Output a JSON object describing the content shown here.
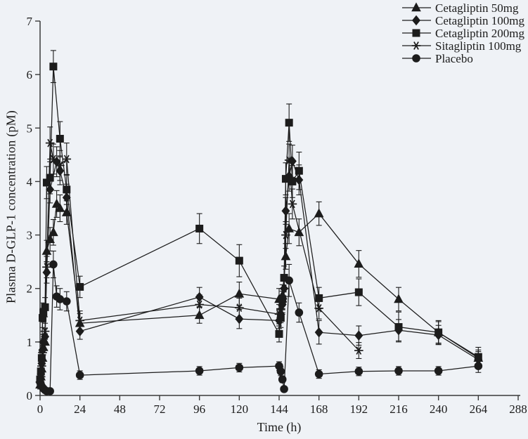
{
  "figure": {
    "background_color": "#eff2f6",
    "ink_color": "#1c1c1c",
    "axis_color": "#3a3a3a"
  },
  "chart_data": {
    "type": "line",
    "title": "",
    "xlabel": "Time (h)",
    "ylabel": "Plasma D-GLP-1 concentration (pM)",
    "xlim": [
      0,
      288
    ],
    "ylim": [
      0,
      7
    ],
    "x_ticks": [
      0,
      24,
      48,
      72,
      96,
      120,
      144,
      168,
      192,
      216,
      240,
      264,
      288
    ],
    "y_ticks": [
      0,
      1,
      2,
      3,
      4,
      5,
      6,
      7
    ],
    "grid": false,
    "error_bars": true,
    "legend_position": "top-right",
    "points_format": [
      "time_h",
      "value_pM",
      "error_pM"
    ],
    "series": [
      {
        "name": "Cetagliptin 50mg",
        "marker": "triangle",
        "points": [
          [
            0,
            0.2,
            0.08
          ],
          [
            0.5,
            0.35,
            0.1
          ],
          [
            1,
            0.5,
            0.12
          ],
          [
            1.5,
            0.7,
            0.12
          ],
          [
            2,
            0.9,
            0.14
          ],
          [
            3,
            1.0,
            0.15
          ],
          [
            4,
            2.7,
            0.2
          ],
          [
            6,
            2.92,
            0.22
          ],
          [
            8,
            3.05,
            0.24
          ],
          [
            10,
            3.58,
            0.25
          ],
          [
            12,
            3.5,
            0.25
          ],
          [
            16,
            3.42,
            0.22
          ],
          [
            24,
            1.35,
            0.18
          ],
          [
            96,
            1.5,
            0.15
          ],
          [
            120,
            1.9,
            0.22
          ],
          [
            144,
            1.8,
            0.2
          ],
          [
            146,
            1.87,
            0.2
          ],
          [
            148,
            2.6,
            0.24
          ],
          [
            150,
            3.12,
            0.28
          ],
          [
            156,
            3.05,
            0.25
          ],
          [
            168,
            3.4,
            0.22
          ],
          [
            192,
            2.46,
            0.25
          ],
          [
            216,
            1.8,
            0.22
          ],
          [
            240,
            1.18,
            0.2
          ],
          [
            264,
            0.7,
            0.15
          ]
        ]
      },
      {
        "name": "Cetagliptin 100mg",
        "marker": "diamond",
        "points": [
          [
            0,
            0.25,
            0.08
          ],
          [
            0.5,
            0.4,
            0.1
          ],
          [
            1,
            0.6,
            0.12
          ],
          [
            1.5,
            0.85,
            0.12
          ],
          [
            2,
            1.0,
            0.14
          ],
          [
            3,
            1.1,
            0.15
          ],
          [
            4,
            2.3,
            0.2
          ],
          [
            6,
            3.85,
            0.25
          ],
          [
            10,
            4.37,
            0.28
          ],
          [
            12,
            4.2,
            0.26
          ],
          [
            16,
            3.7,
            0.25
          ],
          [
            24,
            1.2,
            0.15
          ],
          [
            96,
            1.84,
            0.18
          ],
          [
            120,
            1.43,
            0.18
          ],
          [
            144,
            1.4,
            0.15
          ],
          [
            145,
            1.52,
            0.16
          ],
          [
            146,
            1.7,
            0.18
          ],
          [
            147,
            2.0,
            0.2
          ],
          [
            148,
            3.45,
            0.25
          ],
          [
            150,
            4.1,
            0.28
          ],
          [
            152,
            4.38,
            0.3
          ],
          [
            156,
            4.03,
            0.28
          ],
          [
            168,
            1.18,
            0.22
          ],
          [
            192,
            1.12,
            0.18
          ],
          [
            216,
            1.22,
            0.2
          ],
          [
            240,
            1.13,
            0.18
          ],
          [
            264,
            0.67,
            0.15
          ]
        ]
      },
      {
        "name": "Cetagliptin 200mg",
        "marker": "square",
        "points": [
          [
            0,
            0.3,
            0.08
          ],
          [
            0.5,
            0.45,
            0.1
          ],
          [
            1,
            0.7,
            0.12
          ],
          [
            1.5,
            1.45,
            0.18
          ],
          [
            2,
            1.55,
            0.18
          ],
          [
            3,
            1.65,
            0.18
          ],
          [
            4,
            3.98,
            0.3
          ],
          [
            6,
            4.07,
            0.3
          ],
          [
            8,
            6.15,
            0.3
          ],
          [
            12,
            4.8,
            0.32
          ],
          [
            16,
            3.85,
            0.28
          ],
          [
            24,
            2.03,
            0.2
          ],
          [
            96,
            3.12,
            0.28
          ],
          [
            120,
            2.52,
            0.3
          ],
          [
            144,
            1.15,
            0.15
          ],
          [
            145,
            1.45,
            0.18
          ],
          [
            146,
            1.8,
            0.2
          ],
          [
            147,
            2.2,
            0.22
          ],
          [
            148,
            4.05,
            0.3
          ],
          [
            150,
            5.1,
            0.35
          ],
          [
            152,
            4.0,
            0.3
          ],
          [
            156,
            4.2,
            0.35
          ],
          [
            168,
            1.82,
            0.2
          ],
          [
            192,
            1.93,
            0.25
          ],
          [
            216,
            1.28,
            0.28
          ],
          [
            240,
            1.18,
            0.22
          ],
          [
            264,
            0.72,
            0.18
          ]
        ]
      },
      {
        "name": "Sitagliptin 100mg",
        "marker": "star",
        "points": [
          [
            0,
            0.25,
            0.08
          ],
          [
            0.5,
            0.35,
            0.1
          ],
          [
            1,
            0.55,
            0.12
          ],
          [
            1.5,
            0.8,
            0.12
          ],
          [
            2,
            1.0,
            0.14
          ],
          [
            3,
            1.2,
            0.15
          ],
          [
            4,
            2.4,
            0.2
          ],
          [
            6,
            4.72,
            0.3
          ],
          [
            8,
            4.42,
            0.28
          ],
          [
            12,
            4.3,
            0.28
          ],
          [
            16,
            4.42,
            0.3
          ],
          [
            24,
            1.4,
            0.18
          ],
          [
            96,
            1.7,
            0.18
          ],
          [
            120,
            1.64,
            0.18
          ],
          [
            144,
            1.52,
            0.18
          ],
          [
            145,
            1.62,
            0.18
          ],
          [
            146,
            1.75,
            0.2
          ],
          [
            147,
            2.0,
            0.2
          ],
          [
            148,
            3.0,
            0.25
          ],
          [
            150,
            4.4,
            0.3
          ],
          [
            152,
            3.58,
            0.28
          ],
          [
            168,
            1.63,
            0.2
          ],
          [
            192,
            0.84,
            0.15
          ]
        ]
      },
      {
        "name": "Placebo",
        "marker": "circle",
        "points": [
          [
            0,
            0.25,
            0.06
          ],
          [
            0.5,
            0.2,
            0.05
          ],
          [
            1,
            0.17,
            0.05
          ],
          [
            2,
            0.13,
            0.05
          ],
          [
            3,
            0.1,
            0.04
          ],
          [
            4,
            0.08,
            0.04
          ],
          [
            6,
            0.08,
            0.04
          ],
          [
            8,
            2.45,
            0.25
          ],
          [
            10,
            1.85,
            0.2
          ],
          [
            12,
            1.8,
            0.2
          ],
          [
            16,
            1.76,
            0.18
          ],
          [
            24,
            0.38,
            0.08
          ],
          [
            96,
            0.46,
            0.08
          ],
          [
            120,
            0.52,
            0.08
          ],
          [
            144,
            0.55,
            0.08
          ],
          [
            145,
            0.45,
            0.08
          ],
          [
            146,
            0.3,
            0.06
          ],
          [
            147,
            0.12,
            0.05
          ],
          [
            150,
            2.15,
            0.3
          ],
          [
            156,
            1.55,
            0.18
          ],
          [
            168,
            0.4,
            0.08
          ],
          [
            192,
            0.45,
            0.08
          ],
          [
            216,
            0.46,
            0.08
          ],
          [
            240,
            0.46,
            0.08
          ],
          [
            264,
            0.55,
            0.12
          ]
        ]
      }
    ]
  }
}
